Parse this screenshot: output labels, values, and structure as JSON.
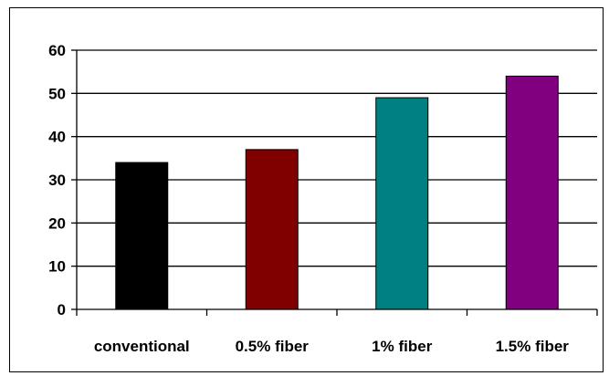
{
  "chart_data": {
    "type": "bar",
    "categories": [
      "conventional",
      "0.5% fiber",
      "1% fiber",
      "1.5% fiber"
    ],
    "values": [
      34,
      37,
      49,
      54
    ],
    "colors": [
      "#000000",
      "#800000",
      "#008080",
      "#800080"
    ],
    "ylim": [
      0,
      60
    ],
    "yticks": [
      0,
      10,
      20,
      30,
      40,
      50,
      60
    ],
    "grid": true,
    "legend": "none",
    "title": "",
    "xlabel": "",
    "ylabel": ""
  }
}
